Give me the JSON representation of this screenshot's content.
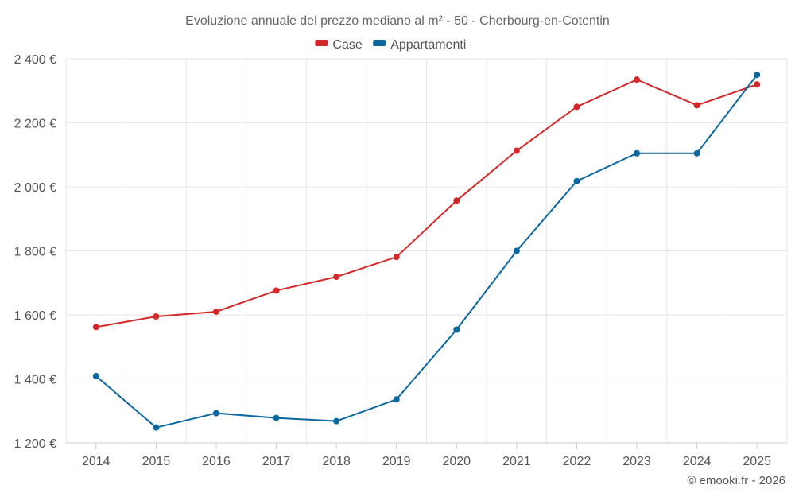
{
  "chart_data": {
    "type": "line",
    "title": "Evoluzione annuale del prezzo mediano al m² - 50 - Cherbourg-en-Cotentin",
    "categories": [
      "2014",
      "2015",
      "2016",
      "2017",
      "2018",
      "2019",
      "2020",
      "2021",
      "2022",
      "2023",
      "2024",
      "2025"
    ],
    "series": [
      {
        "name": "Case",
        "color": "#d62728",
        "values": [
          1562,
          1595,
          1610,
          1676,
          1719,
          1781,
          1957,
          2113,
          2250,
          2335,
          2255,
          2320
        ]
      },
      {
        "name": "Appartamenti",
        "color": "#0a67a0",
        "values": [
          1409,
          1248,
          1293,
          1278,
          1268,
          1336,
          1554,
          1800,
          2018,
          2105,
          2105,
          2350
        ]
      }
    ],
    "y_ticks": [
      1200,
      1400,
      1600,
      1800,
      2000,
      2200,
      2400
    ],
    "y_tick_labels": [
      "1 200 €",
      "1 400 €",
      "1 600 €",
      "1 800 €",
      "2 000 €",
      "2 200 €",
      "2 400 €"
    ],
    "ylim": [
      1200,
      2400
    ],
    "xlabel": "",
    "ylabel": "",
    "grid": true,
    "legend": "top-center"
  },
  "credit": "© emooki.fr - 2026"
}
